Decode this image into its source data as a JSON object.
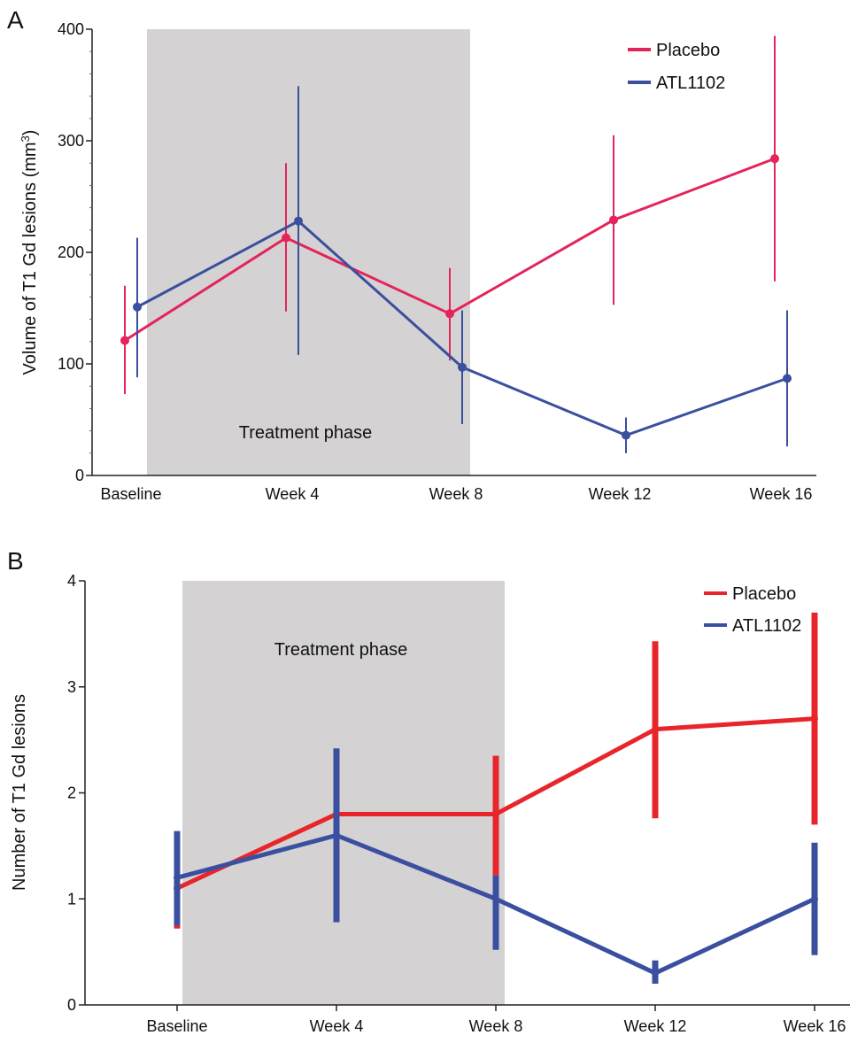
{
  "chart_data": [
    {
      "type": "line",
      "panel_label": "A",
      "categories": [
        "Baseline",
        "Week 4",
        "Week 8",
        "Week 12",
        "Week 16"
      ],
      "ylabel": "Volume of T1 Gd lesions (mm",
      "ylabel_sup": "3",
      "ylabel_tail": ")",
      "ylim": [
        0,
        400
      ],
      "yticks": [
        0,
        100,
        200,
        300,
        400
      ],
      "shaded_region": {
        "label": "Treatment phase",
        "from": "Baseline",
        "to": "Week 8"
      },
      "legend_position": "top-right",
      "series": [
        {
          "name": "Placebo",
          "color": "#e4245a",
          "values": [
            121,
            213,
            145,
            229,
            284
          ],
          "error_low": [
            73,
            147,
            103,
            153,
            174
          ],
          "error_high": [
            170,
            280,
            186,
            305,
            394
          ]
        },
        {
          "name": "ATL1102",
          "color": "#3a4f9e",
          "values": [
            151,
            228,
            97,
            36,
            87
          ],
          "error_low": [
            88,
            108,
            46,
            20,
            26
          ],
          "error_high": [
            213,
            349,
            148,
            52,
            148
          ]
        }
      ]
    },
    {
      "type": "line",
      "panel_label": "B",
      "categories": [
        "Baseline",
        "Week 4",
        "Week 8",
        "Week 12",
        "Week 16"
      ],
      "ylabel": "Number of T1 Gd lesions",
      "ylim": [
        0,
        4
      ],
      "yticks": [
        0,
        1,
        2,
        3,
        4
      ],
      "shaded_region": {
        "label": "Treatment phase",
        "from": "Baseline",
        "to": "Week 8"
      },
      "legend_position": "top-right",
      "series": [
        {
          "name": "Placebo",
          "color": "#e8252b",
          "values": [
            1.1,
            1.8,
            1.8,
            2.6,
            2.7
          ],
          "error_low": [
            0.72,
            1.31,
            1.22,
            1.76,
            1.7
          ],
          "error_high": [
            1.5,
            2.29,
            2.35,
            3.43,
            3.7
          ]
        },
        {
          "name": "ATL1102",
          "color": "#3a4fa0",
          "values": [
            1.2,
            1.6,
            1.0,
            0.3,
            1.0
          ],
          "error_low": [
            0.75,
            0.78,
            0.52,
            0.2,
            0.47
          ],
          "error_high": [
            1.64,
            2.42,
            1.22,
            0.42,
            1.53
          ]
        }
      ]
    }
  ]
}
